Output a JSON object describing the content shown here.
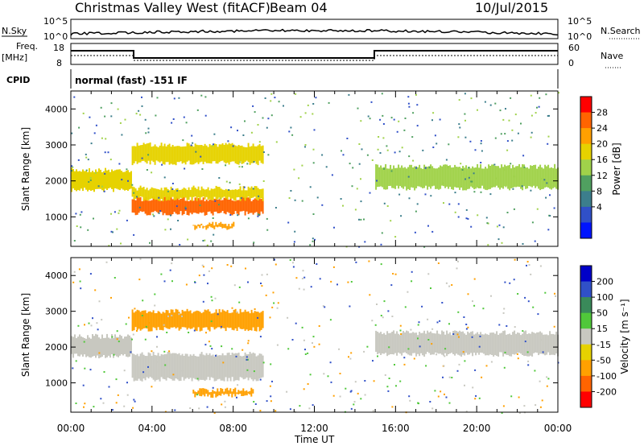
{
  "header": {
    "title": "Christmas Valley West (fitACF)",
    "beam": "Beam 04",
    "date": "10/Jul/2015"
  },
  "params_panel": {
    "nsky_label": "N.Sky",
    "nsky_ticks": [
      "10^5",
      "10^0"
    ],
    "nsearch_label": "N.Search",
    "nsearch_ticks": [
      "10^5",
      "10^0"
    ],
    "freq_label": "Freq.",
    "freq_unit": "[MHz]",
    "freq_ticks": [
      "18",
      "8"
    ],
    "nave_label": "Nave",
    "nave_ticks": [
      "60",
      "0"
    ],
    "cpid_label": "CPID",
    "cpid_text": "normal (fast) -151 IF"
  },
  "chart_data": [
    {
      "type": "heatmap",
      "name": "power",
      "ylabel": "Slant Range [km]",
      "yticks": [
        "4000",
        "3000",
        "2000",
        "1000"
      ],
      "ylim": [
        180,
        4500
      ],
      "colorbar_label": "Power [dB]",
      "colorbar_ticks": [
        "28",
        "24",
        "20",
        "16",
        "12",
        "8",
        "4"
      ],
      "colorbar_colors": [
        "#ff0000",
        "#ff6400",
        "#ffa000",
        "#e6d200",
        "#a0d24a",
        "#50a060",
        "#3c7e8c",
        "#3050c8",
        "#0014ff"
      ],
      "bands": [
        {
          "x": [
            0.0,
            3.0
          ],
          "y": [
            1750,
            2300
          ],
          "power_db": 18
        },
        {
          "x": [
            3.0,
            9.5
          ],
          "y": [
            1100,
            1500
          ],
          "power_db": 26
        },
        {
          "x": [
            3.0,
            9.5
          ],
          "y": [
            1500,
            1800
          ],
          "power_db": 18
        },
        {
          "x": [
            3.0,
            9.5
          ],
          "y": [
            2500,
            3000
          ],
          "power_db": 18
        },
        {
          "x": [
            6.0,
            8.0
          ],
          "y": [
            700,
            800
          ],
          "power_db": 22
        },
        {
          "x": [
            15.0,
            24.0
          ],
          "y": [
            1800,
            2400
          ],
          "power_db": 14
        }
      ]
    },
    {
      "type": "heatmap",
      "name": "velocity",
      "ylabel": "Slant Range [km]",
      "yticks": [
        "4000",
        "3000",
        "2000",
        "1000"
      ],
      "ylim": [
        180,
        4500
      ],
      "xlabel": "Time UT",
      "xticks": [
        "00:00",
        "04:00",
        "08:00",
        "12:00",
        "16:00",
        "20:00",
        "00:00"
      ],
      "xlim": [
        0,
        24
      ],
      "colorbar_label": "Velocity [m s⁻¹]",
      "colorbar_ticks": [
        "200",
        "100",
        "50",
        "15",
        "-15",
        "-50",
        "-100",
        "-200"
      ],
      "colorbar_colors": [
        "#0000c8",
        "#3050c8",
        "#3a8a5a",
        "#50c83a",
        "#c8c8c0",
        "#e6d200",
        "#ffa000",
        "#ff6400",
        "#ff0000"
      ],
      "bands": [
        {
          "x": [
            0.0,
            3.0
          ],
          "y": [
            1750,
            2300
          ],
          "velocity": 0
        },
        {
          "x": [
            3.0,
            9.5
          ],
          "y": [
            1100,
            1800
          ],
          "velocity": 0
        },
        {
          "x": [
            3.0,
            9.5
          ],
          "y": [
            2500,
            3000
          ],
          "velocity": -60
        },
        {
          "x": [
            6.0,
            9.0
          ],
          "y": [
            650,
            800
          ],
          "velocity": -60
        },
        {
          "x": [
            15.0,
            24.0
          ],
          "y": [
            1800,
            2400
          ],
          "velocity": 0
        }
      ]
    }
  ]
}
